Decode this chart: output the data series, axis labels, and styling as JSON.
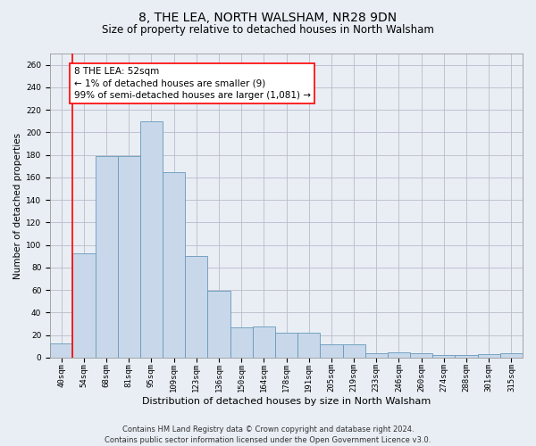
{
  "title": "8, THE LEA, NORTH WALSHAM, NR28 9DN",
  "subtitle": "Size of property relative to detached houses in North Walsham",
  "xlabel": "Distribution of detached houses by size in North Walsham",
  "ylabel": "Number of detached properties",
  "categories": [
    "40sqm",
    "54sqm",
    "68sqm",
    "81sqm",
    "95sqm",
    "109sqm",
    "123sqm",
    "136sqm",
    "150sqm",
    "164sqm",
    "178sqm",
    "191sqm",
    "205sqm",
    "219sqm",
    "233sqm",
    "246sqm",
    "260sqm",
    "274sqm",
    "288sqm",
    "301sqm",
    "315sqm"
  ],
  "values": [
    13,
    93,
    179,
    179,
    210,
    165,
    90,
    59,
    27,
    28,
    22,
    22,
    12,
    12,
    4,
    5,
    4,
    2,
    2,
    3,
    4
  ],
  "bar_color": "#c8d8ea",
  "bar_edge_color": "#6699bb",
  "annotation_text": "8 THE LEA: 52sqm\n← 1% of detached houses are smaller (9)\n99% of semi-detached houses are larger (1,081) →",
  "annotation_box_color": "white",
  "annotation_box_edge_color": "red",
  "marker_line_color": "red",
  "ylim": [
    0,
    270
  ],
  "yticks": [
    0,
    20,
    40,
    60,
    80,
    100,
    120,
    140,
    160,
    180,
    200,
    220,
    240,
    260
  ],
  "footnote": "Contains HM Land Registry data © Crown copyright and database right 2024.\nContains public sector information licensed under the Open Government Licence v3.0.",
  "background_color": "#e8eef4",
  "plot_bg_color": "#e8eef4",
  "grid_color": "#bbbbcc",
  "title_fontsize": 10,
  "subtitle_fontsize": 8.5,
  "xlabel_fontsize": 8,
  "ylabel_fontsize": 7.5,
  "tick_fontsize": 6.5,
  "annotation_fontsize": 7.5,
  "footnote_fontsize": 6
}
